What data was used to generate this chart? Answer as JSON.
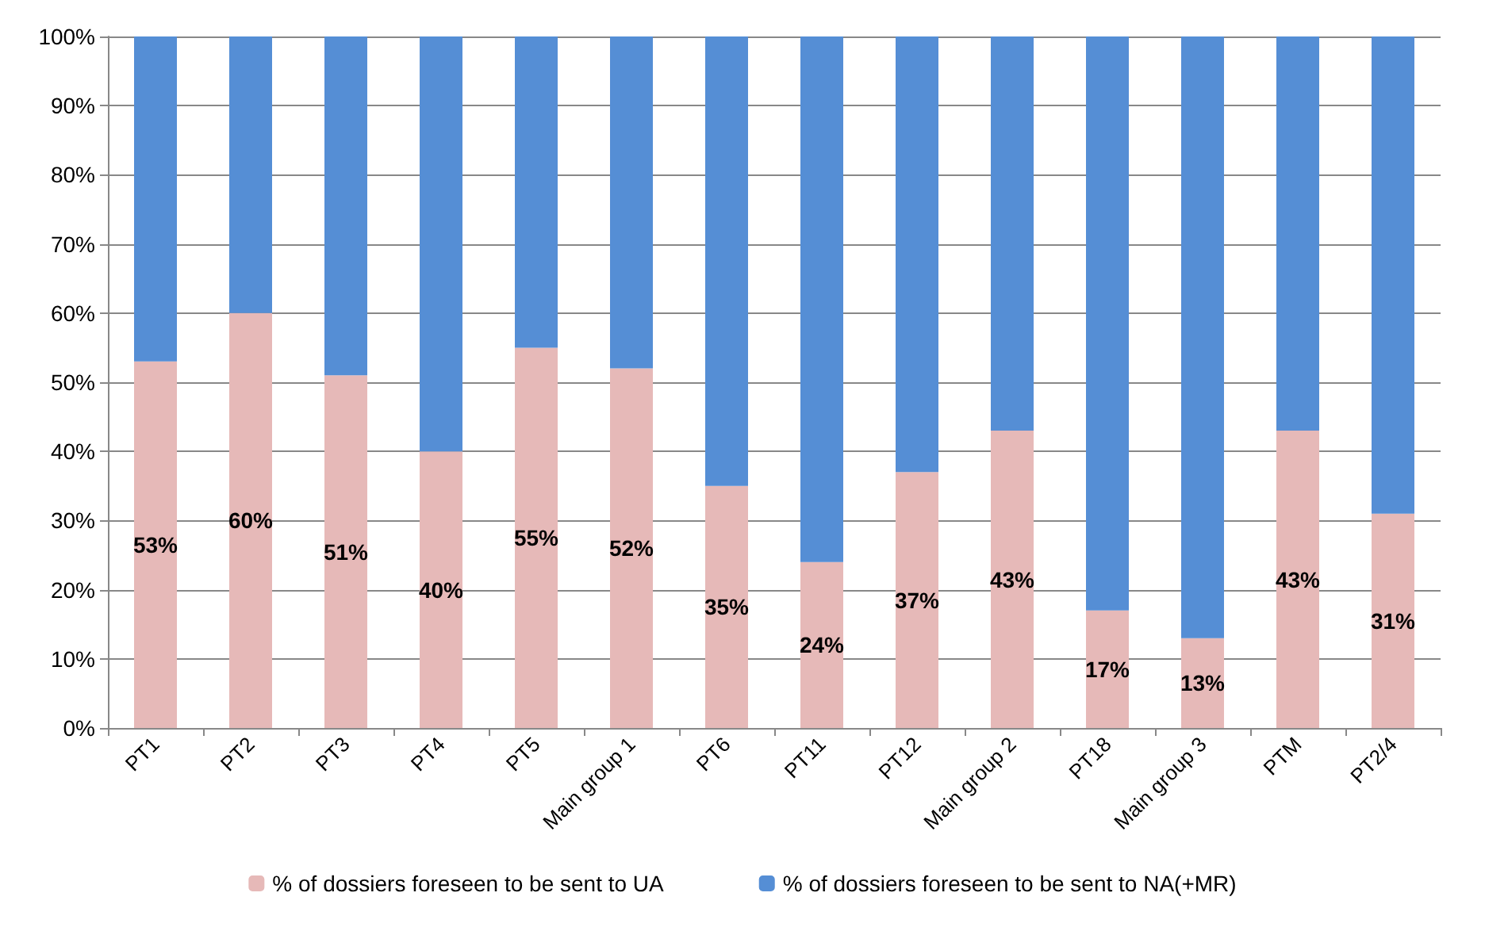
{
  "chart_data": {
    "type": "bar",
    "stacked": true,
    "categories": [
      "PT1",
      "PT2",
      "PT3",
      "PT4",
      "PT5",
      "Main group 1",
      "PT6",
      "PT11",
      "PT12",
      "Main group 2",
      "PT18",
      "Main group 3",
      "PTM",
      "PT2/4"
    ],
    "series": [
      {
        "name": "% of dossiers foreseen to be sent to UA",
        "color": "#e6b9b8",
        "values": [
          53,
          60,
          51,
          40,
          55,
          52,
          35,
          24,
          37,
          43,
          17,
          13,
          43,
          31
        ],
        "value_labels": [
          "53%",
          "60%",
          "51%",
          "40%",
          "55%",
          "52%",
          "35%",
          "24%",
          "37%",
          "43%",
          "17%",
          "13%",
          "43%",
          "31%"
        ]
      },
      {
        "name": "% of dossiers foreseen to be sent to NA(+MR)",
        "color": "#558ed5",
        "values": [
          47,
          40,
          49,
          60,
          45,
          48,
          65,
          76,
          63,
          57,
          83,
          87,
          57,
          69
        ]
      }
    ],
    "ylim": [
      0,
      100
    ],
    "yticks": [
      {
        "value": 0,
        "label": "0%"
      },
      {
        "value": 10,
        "label": "10%"
      },
      {
        "value": 20,
        "label": "20%"
      },
      {
        "value": 30,
        "label": "30%"
      },
      {
        "value": 40,
        "label": "40%"
      },
      {
        "value": 50,
        "label": "50%"
      },
      {
        "value": 60,
        "label": "60%"
      },
      {
        "value": 70,
        "label": "70%"
      },
      {
        "value": 80,
        "label": "80%"
      },
      {
        "value": 90,
        "label": "90%"
      },
      {
        "value": 100,
        "label": "100%"
      }
    ],
    "grid": "y",
    "legend": "bottom"
  }
}
